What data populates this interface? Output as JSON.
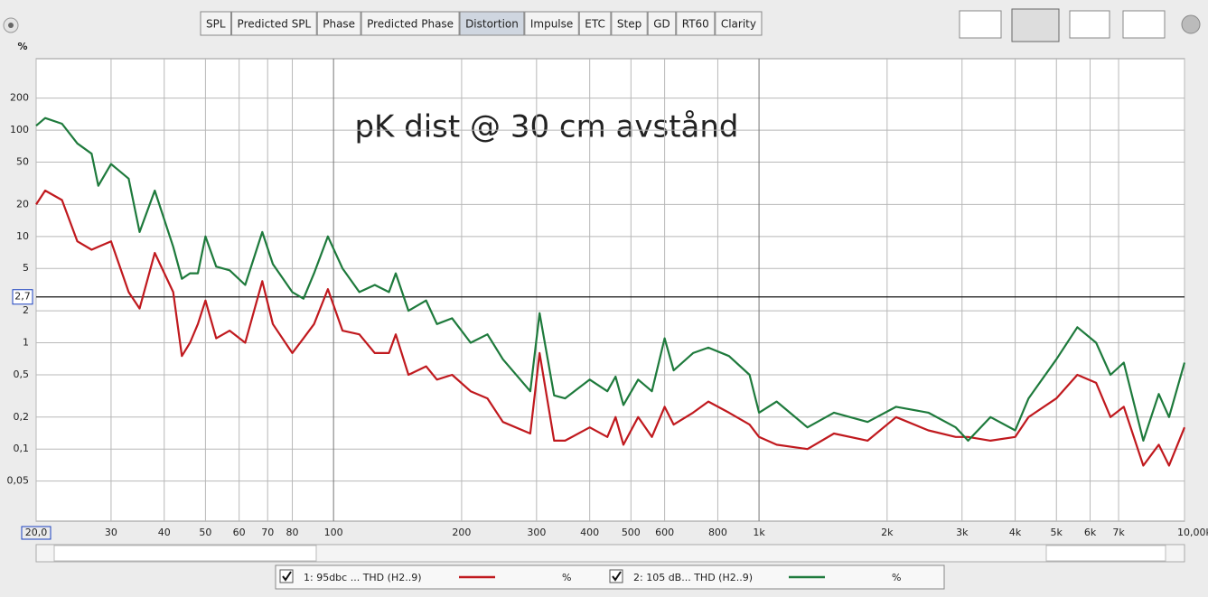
{
  "toolbar": {
    "tabs": [
      "SPL",
      "Predicted SPL",
      "Phase",
      "Predicted Phase",
      "Distortion",
      "Impulse",
      "ETC",
      "Step",
      "GD",
      "RT60",
      "Clarity"
    ],
    "active_index": 4
  },
  "chart_data": {
    "type": "line",
    "title": "pK dist @ 30 cm avstånd",
    "ylabel": "%",
    "log_x": true,
    "log_y": true,
    "grid": true,
    "xlim": [
      20,
      10000
    ],
    "ylim": [
      0.021,
      470
    ],
    "xticks": [
      {
        "value": 20,
        "label": "20,0"
      },
      30,
      40,
      50,
      60,
      70,
      80,
      100,
      200,
      300,
      400,
      500,
      600,
      800,
      {
        "value": 1000,
        "label": "1k"
      },
      {
        "value": 2000,
        "label": "2k"
      },
      {
        "value": 3000,
        "label": "3k"
      },
      {
        "value": 4000,
        "label": "4k"
      },
      {
        "value": 5000,
        "label": "5k"
      },
      {
        "value": 6000,
        "label": "6k"
      },
      {
        "value": 7000,
        "label": "7k"
      },
      {
        "value": 10000,
        "label": "10,00kHz"
      }
    ],
    "yticks": [
      200,
      100,
      50,
      20,
      10,
      5,
      2,
      1,
      {
        "value": 0.5,
        "label": "0,5"
      },
      {
        "value": 0.2,
        "label": "0,2"
      },
      {
        "value": 0.1,
        "label": "0,1"
      },
      {
        "value": 0.05,
        "label": "0,05"
      }
    ],
    "cursor": {
      "value": 2.7,
      "label": "2,7"
    },
    "x": [
      20,
      21,
      23,
      25,
      27,
      28,
      30,
      33,
      35,
      38,
      42,
      44,
      46,
      48,
      50,
      53,
      57,
      62,
      68,
      72,
      80,
      85,
      90,
      97,
      105,
      115,
      125,
      135,
      140,
      150,
      165,
      175,
      190,
      210,
      230,
      250,
      290,
      305,
      330,
      350,
      400,
      440,
      460,
      480,
      520,
      560,
      600,
      630,
      700,
      760,
      850,
      950,
      1000,
      1100,
      1300,
      1500,
      1800,
      2100,
      2500,
      2900,
      3100,
      3500,
      4000,
      4300,
      5000,
      5600,
      6200,
      6700,
      7200,
      8000,
      8700,
      9200,
      10000
    ],
    "series": [
      {
        "name": "1: 95dbc ... THD (H2..9)",
        "color": "#c0191e",
        "values": [
          20,
          27,
          22,
          9,
          7.5,
          8,
          9,
          3,
          2.1,
          7,
          3,
          0.75,
          1,
          1.5,
          2.5,
          1.1,
          1.3,
          1,
          3.8,
          1.5,
          0.8,
          1.1,
          1.5,
          3.2,
          1.3,
          1.2,
          0.8,
          0.8,
          1.2,
          0.5,
          0.6,
          0.45,
          0.5,
          0.35,
          0.3,
          0.18,
          0.14,
          0.8,
          0.12,
          0.12,
          0.16,
          0.13,
          0.2,
          0.11,
          0.2,
          0.13,
          0.25,
          0.17,
          0.22,
          0.28,
          0.22,
          0.17,
          0.13,
          0.11,
          0.1,
          0.14,
          0.12,
          0.2,
          0.15,
          0.13,
          0.13,
          0.12,
          0.13,
          0.2,
          0.3,
          0.5,
          0.42,
          0.2,
          0.25,
          0.07,
          0.11,
          0.07,
          0.16
        ]
      },
      {
        "name": "2: 105 dB... THD (H2..9)",
        "color": "#1e7a3c",
        "values": [
          110,
          130,
          115,
          75,
          60,
          30,
          48,
          35,
          11,
          27,
          8,
          4,
          4.5,
          4.5,
          10,
          5.2,
          4.8,
          3.5,
          11,
          5.5,
          3,
          2.6,
          4.5,
          10,
          5,
          3,
          3.5,
          3,
          4.5,
          2,
          2.5,
          1.5,
          1.7,
          1,
          1.2,
          0.7,
          0.35,
          1.9,
          0.32,
          0.3,
          0.45,
          0.35,
          0.48,
          0.26,
          0.45,
          0.35,
          1.1,
          0.55,
          0.8,
          0.9,
          0.75,
          0.5,
          0.22,
          0.28,
          0.16,
          0.22,
          0.18,
          0.25,
          0.22,
          0.16,
          0.12,
          0.2,
          0.15,
          0.3,
          0.7,
          1.4,
          1,
          0.5,
          0.65,
          0.12,
          0.33,
          0.2,
          0.65
        ]
      }
    ]
  }
}
